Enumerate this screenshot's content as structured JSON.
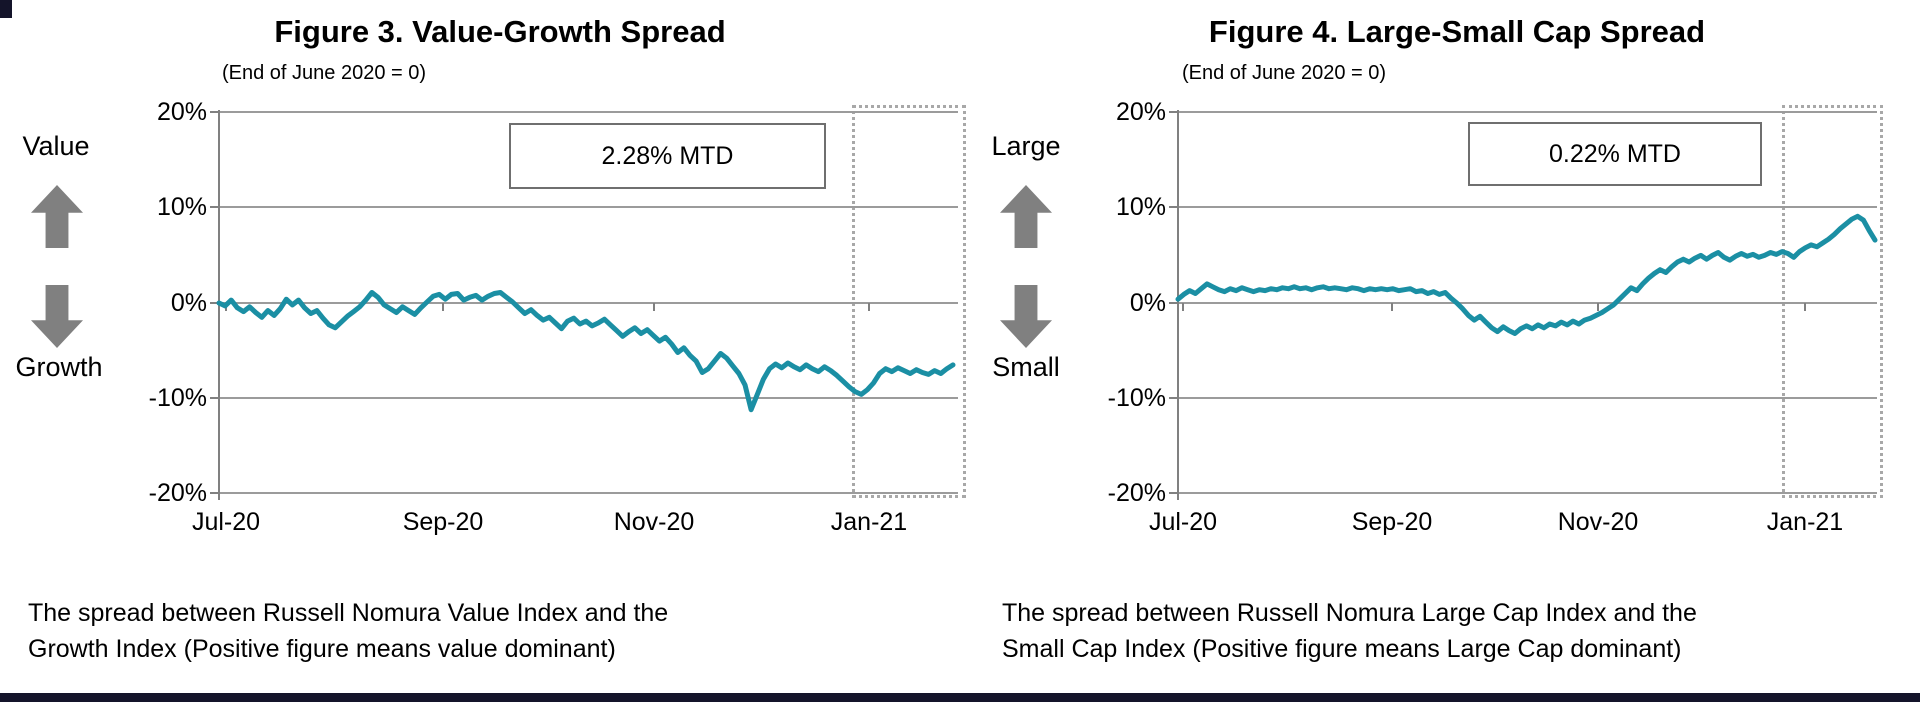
{
  "colors": {
    "line": "#1B8FA4",
    "grid": "#9B9B9B",
    "axis": "#808080",
    "arrow": "#808080",
    "dotted_box": "#A8A8A8",
    "annotation_border": "#6F6F6F",
    "footer_bar": "#14142A"
  },
  "chart_data": [
    {
      "type": "line",
      "title": "Figure 3. Value-Growth Spread",
      "subtitle": "(End of June 2020 = 0)",
      "annotation": "2.28% MTD",
      "direction_up_label": "Value",
      "direction_down_label": "Growth",
      "x_ticks": [
        "Jul-20",
        "Sep-20",
        "Nov-20",
        "Jan-21"
      ],
      "y_ticks": [
        "20%",
        "10%",
        "0%",
        "-10%",
        "-20%"
      ],
      "ylim": [
        -20,
        20
      ],
      "unit": "%",
      "grid": true,
      "legend": "none",
      "highlight": "dotted box around final month of data",
      "caption_line1": "The spread between Russell Nomura Value Index and the",
      "caption_line2": "Growth Index (Positive figure means value dominant)",
      "series": [
        {
          "name": "Value-Growth spread",
          "values": [
            0.0,
            -0.3,
            0.3,
            -0.5,
            -0.9,
            -0.4,
            -1.0,
            -1.5,
            -0.8,
            -1.3,
            -0.6,
            0.4,
            -0.2,
            0.3,
            -0.5,
            -1.1,
            -0.8,
            -1.6,
            -2.3,
            -2.6,
            -2.0,
            -1.4,
            -0.9,
            -0.4,
            0.3,
            1.1,
            0.6,
            -0.2,
            -0.6,
            -1.0,
            -0.4,
            -0.8,
            -1.2,
            -0.5,
            0.1,
            0.7,
            0.9,
            0.4,
            0.9,
            1.0,
            0.3,
            0.6,
            0.8,
            0.3,
            0.7,
            1.0,
            1.1,
            0.6,
            0.1,
            -0.5,
            -1.1,
            -0.7,
            -1.3,
            -1.8,
            -1.5,
            -2.1,
            -2.7,
            -1.9,
            -1.6,
            -2.2,
            -1.9,
            -2.4,
            -2.1,
            -1.7,
            -2.3,
            -2.9,
            -3.5,
            -3.0,
            -2.6,
            -3.2,
            -2.8,
            -3.4,
            -4.0,
            -3.6,
            -4.3,
            -5.2,
            -4.7,
            -5.5,
            -6.1,
            -7.3,
            -6.9,
            -6.1,
            -5.3,
            -5.8,
            -6.6,
            -7.4,
            -8.6,
            -11.2,
            -9.6,
            -8.0,
            -6.9,
            -6.4,
            -6.8,
            -6.3,
            -6.7,
            -7.0,
            -6.5,
            -6.9,
            -7.2,
            -6.7,
            -7.1,
            -7.6,
            -8.2,
            -8.8,
            -9.3,
            -9.6,
            -9.1,
            -8.4,
            -7.4,
            -6.9,
            -7.2,
            -6.8,
            -7.1,
            -7.4,
            -7.0,
            -7.3,
            -7.5,
            -7.1,
            -7.4,
            -6.9,
            -6.5
          ]
        }
      ]
    },
    {
      "type": "line",
      "title": "Figure 4. Large-Small Cap Spread",
      "subtitle": "(End of June 2020 = 0)",
      "annotation": "0.22% MTD",
      "direction_up_label": "Large",
      "direction_down_label": "Small",
      "x_ticks": [
        "Jul-20",
        "Sep-20",
        "Nov-20",
        "Jan-21"
      ],
      "y_ticks": [
        "20%",
        "10%",
        "0%",
        "-10%",
        "-20%"
      ],
      "ylim": [
        -20,
        20
      ],
      "unit": "%",
      "grid": true,
      "legend": "none",
      "highlight": "dotted box around final month of data",
      "caption_line1": "The spread between Russell Nomura Large Cap Index and the",
      "caption_line2": "Small Cap Index (Positive figure means Large Cap dominant)",
      "series": [
        {
          "name": "Large-Small Cap spread",
          "values": [
            0.4,
            0.9,
            1.3,
            1.0,
            1.5,
            2.0,
            1.7,
            1.4,
            1.2,
            1.5,
            1.3,
            1.6,
            1.4,
            1.2,
            1.4,
            1.3,
            1.5,
            1.4,
            1.6,
            1.5,
            1.7,
            1.5,
            1.6,
            1.4,
            1.6,
            1.7,
            1.5,
            1.6,
            1.5,
            1.4,
            1.6,
            1.5,
            1.3,
            1.5,
            1.4,
            1.5,
            1.4,
            1.5,
            1.3,
            1.4,
            1.5,
            1.2,
            1.3,
            1.0,
            1.2,
            0.9,
            1.1,
            0.5,
            0.0,
            -0.6,
            -1.3,
            -1.8,
            -1.4,
            -2.0,
            -2.6,
            -3.0,
            -2.5,
            -2.9,
            -3.2,
            -2.7,
            -2.4,
            -2.7,
            -2.3,
            -2.6,
            -2.2,
            -2.4,
            -2.0,
            -2.3,
            -1.9,
            -2.2,
            -1.8,
            -1.6,
            -1.3,
            -1.0,
            -0.6,
            -0.2,
            0.4,
            1.0,
            1.6,
            1.3,
            2.0,
            2.6,
            3.1,
            3.5,
            3.2,
            3.8,
            4.3,
            4.6,
            4.3,
            4.7,
            5.0,
            4.6,
            5.0,
            5.3,
            4.8,
            4.5,
            4.9,
            5.2,
            4.9,
            5.1,
            4.8,
            5.0,
            5.3,
            5.1,
            5.4,
            5.2,
            4.8,
            5.4,
            5.8,
            6.1,
            5.9,
            6.3,
            6.7,
            7.2,
            7.8,
            8.3,
            8.8,
            9.1,
            8.7,
            7.6,
            6.6
          ]
        }
      ]
    }
  ]
}
